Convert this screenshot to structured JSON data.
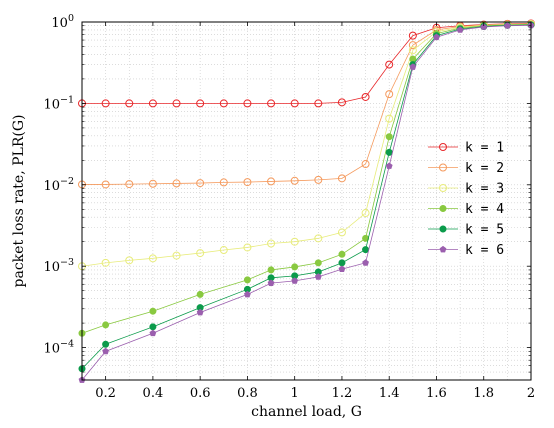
{
  "chart_data": {
    "type": "line",
    "xlabel": "channel load, G",
    "ylabel": "packet loss rate, PLR(G)",
    "xlim": [
      0.1,
      2.0
    ],
    "ylim": [
      4e-05,
      1.0
    ],
    "yscale": "log",
    "grid": true,
    "legend_position": "right",
    "x_ticks": [
      0.2,
      0.4,
      0.6,
      0.8,
      1.0,
      1.2,
      1.4,
      1.6,
      1.8,
      2.0
    ],
    "x_tick_labels": [
      "0.2",
      "0.4",
      "0.6",
      "0.8",
      "1",
      "1.2",
      "1.4",
      "1.6",
      "1.8",
      "2"
    ],
    "y_ticks": [
      0.0001,
      0.001,
      0.01,
      0.1,
      1
    ],
    "y_tick_labels": [
      {
        "base": "10",
        "exp": "−4"
      },
      {
        "base": "10",
        "exp": "−3"
      },
      {
        "base": "10",
        "exp": "−2"
      },
      {
        "base": "10",
        "exp": "−1"
      },
      {
        "base": "10",
        "exp": "0"
      }
    ],
    "series": [
      {
        "name": "k = 1",
        "color": "#e8272a",
        "marker": "circle-open",
        "points": [
          [
            0.1,
            0.1
          ],
          [
            0.2,
            0.1
          ],
          [
            0.3,
            0.1
          ],
          [
            0.4,
            0.1
          ],
          [
            0.5,
            0.1
          ],
          [
            0.6,
            0.1
          ],
          [
            0.7,
            0.1
          ],
          [
            0.8,
            0.1
          ],
          [
            0.9,
            0.1
          ],
          [
            1.0,
            0.1
          ],
          [
            1.1,
            0.1
          ],
          [
            1.2,
            0.103
          ],
          [
            1.3,
            0.12
          ],
          [
            1.4,
            0.3
          ],
          [
            1.5,
            0.68
          ],
          [
            1.6,
            0.85
          ],
          [
            1.7,
            0.9
          ],
          [
            1.8,
            0.93
          ],
          [
            1.9,
            0.95
          ],
          [
            2.0,
            0.96
          ]
        ]
      },
      {
        "name": "k = 2",
        "color": "#f59a5d",
        "marker": "circle-open",
        "points": [
          [
            0.1,
            0.0101
          ],
          [
            0.2,
            0.0101
          ],
          [
            0.3,
            0.0102
          ],
          [
            0.4,
            0.0103
          ],
          [
            0.5,
            0.0104
          ],
          [
            0.6,
            0.0105
          ],
          [
            0.7,
            0.0107
          ],
          [
            0.8,
            0.0108
          ],
          [
            0.9,
            0.011
          ],
          [
            1.0,
            0.0112
          ],
          [
            1.1,
            0.0115
          ],
          [
            1.2,
            0.012
          ],
          [
            1.3,
            0.018
          ],
          [
            1.4,
            0.13
          ],
          [
            1.5,
            0.52
          ],
          [
            1.6,
            0.8
          ],
          [
            1.7,
            0.88
          ],
          [
            1.8,
            0.92
          ],
          [
            1.9,
            0.94
          ],
          [
            2.0,
            0.95
          ]
        ]
      },
      {
        "name": "k = 3",
        "color": "#e8ec7c",
        "marker": "circle-open",
        "points": [
          [
            0.1,
            0.001
          ],
          [
            0.2,
            0.0011
          ],
          [
            0.3,
            0.00118
          ],
          [
            0.4,
            0.00125
          ],
          [
            0.5,
            0.00135
          ],
          [
            0.6,
            0.00145
          ],
          [
            0.7,
            0.00158
          ],
          [
            0.8,
            0.0017
          ],
          [
            0.9,
            0.0019
          ],
          [
            1.0,
            0.002
          ],
          [
            1.1,
            0.0022
          ],
          [
            1.2,
            0.0026
          ],
          [
            1.3,
            0.0045
          ],
          [
            1.4,
            0.065
          ],
          [
            1.5,
            0.45
          ],
          [
            1.6,
            0.76
          ],
          [
            1.7,
            0.86
          ],
          [
            1.8,
            0.91
          ],
          [
            1.9,
            0.93
          ],
          [
            2.0,
            0.94
          ]
        ]
      },
      {
        "name": "k = 4",
        "color": "#89c940",
        "marker": "circle-filled",
        "points": [
          [
            0.1,
            0.00015
          ],
          [
            0.2,
            0.00019
          ],
          [
            0.4,
            0.00028
          ],
          [
            0.6,
            0.00045
          ],
          [
            0.8,
            0.00068
          ],
          [
            0.9,
            0.0009
          ],
          [
            1.0,
            0.00098
          ],
          [
            1.1,
            0.0011
          ],
          [
            1.2,
            0.0014
          ],
          [
            1.3,
            0.0022
          ],
          [
            1.4,
            0.039
          ],
          [
            1.5,
            0.35
          ],
          [
            1.6,
            0.72
          ],
          [
            1.7,
            0.84
          ],
          [
            1.8,
            0.9
          ],
          [
            1.9,
            0.92
          ],
          [
            2.0,
            0.93
          ]
        ]
      },
      {
        "name": "k = 5",
        "color": "#0b9b4b",
        "marker": "circle-filled",
        "points": [
          [
            0.1,
            5.5e-05
          ],
          [
            0.2,
            0.00011
          ],
          [
            0.4,
            0.00018
          ],
          [
            0.6,
            0.00031
          ],
          [
            0.8,
            0.00052
          ],
          [
            0.9,
            0.00072
          ],
          [
            1.0,
            0.00076
          ],
          [
            1.1,
            0.00085
          ],
          [
            1.2,
            0.0011
          ],
          [
            1.3,
            0.0016
          ],
          [
            1.4,
            0.025
          ],
          [
            1.5,
            0.3
          ],
          [
            1.6,
            0.68
          ],
          [
            1.7,
            0.82
          ],
          [
            1.8,
            0.88
          ],
          [
            1.9,
            0.91
          ],
          [
            2.0,
            0.92
          ]
        ]
      },
      {
        "name": "k = 6",
        "color": "#9b5fae",
        "marker": "pentagon-filled",
        "points": [
          [
            0.1,
            4e-05
          ],
          [
            0.2,
            9e-05
          ],
          [
            0.4,
            0.00015
          ],
          [
            0.6,
            0.00027
          ],
          [
            0.8,
            0.00045
          ],
          [
            0.9,
            0.00062
          ],
          [
            1.0,
            0.00066
          ],
          [
            1.1,
            0.00074
          ],
          [
            1.2,
            0.00092
          ],
          [
            1.3,
            0.0011
          ],
          [
            1.4,
            0.017
          ],
          [
            1.5,
            0.28
          ],
          [
            1.6,
            0.65
          ],
          [
            1.7,
            0.8
          ],
          [
            1.8,
            0.87
          ],
          [
            1.9,
            0.9
          ],
          [
            2.0,
            0.91
          ]
        ]
      }
    ]
  }
}
